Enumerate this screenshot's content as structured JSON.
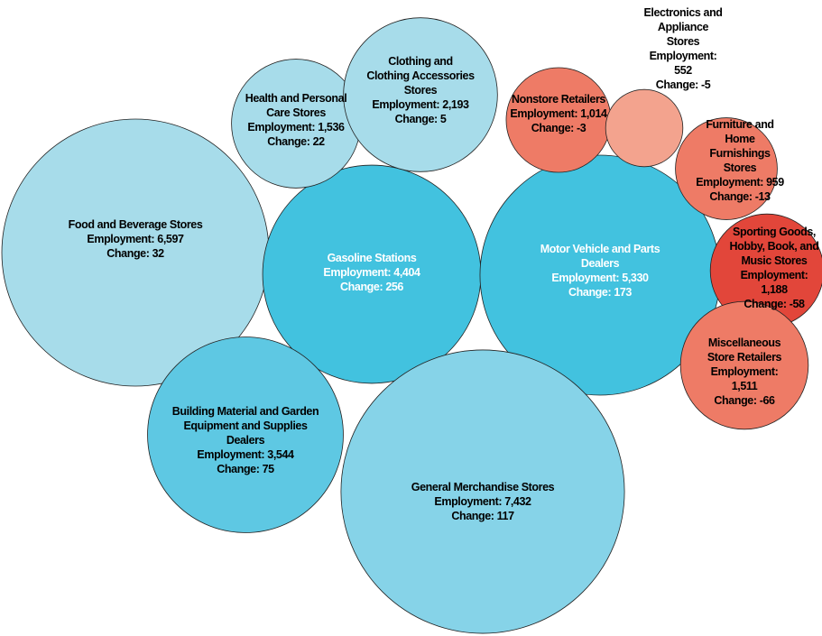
{
  "chart_data": {
    "type": "packed-bubble",
    "categories": [
      "Food and Beverage Stores",
      "Gasoline Stations",
      "Motor Vehicle and Parts Dealers",
      "Building Material and Garden Equipment and Supplies Dealers",
      "General Merchandise Stores",
      "Health and Personal Care Stores",
      "Clothing and Clothing Accessories Stores",
      "Nonstore Retailers",
      "Electronics and Appliance Stores",
      "Furniture and Home Furnishings Stores",
      "Sporting Goods, Hobby, Book, and Music Stores",
      "Miscellaneous Store Retailers"
    ],
    "employment_label": "Employment:",
    "change_label": "Change:",
    "employment": [
      6597,
      4404,
      5330,
      3544,
      7432,
      1536,
      2193,
      1014,
      552,
      959,
      1188,
      1511
    ],
    "value_labels": [
      "6,597",
      "4,404",
      "5,330",
      "3,544",
      "7,432",
      "1,536",
      "2,193",
      "1,014",
      "552",
      "959",
      "1,188",
      "1,511"
    ],
    "change": [
      32,
      256,
      173,
      75,
      117,
      22,
      5,
      -3,
      -5,
      -13,
      -58,
      -66
    ],
    "colors": [
      "#a7dcea",
      "#42c2df",
      "#42c2df",
      "#5ec8e3",
      "#86d3e8",
      "#a7dcea",
      "#a7dcea",
      "#ee7b66",
      "#f3a38e",
      "#ee7b66",
      "#e2463a",
      "#ee7b66"
    ],
    "label_colors": [
      "#000000",
      "#ffffff",
      "#ffffff",
      "#000000",
      "#000000",
      "#000000",
      "#000000",
      "#000000",
      "#000000",
      "#000000",
      "#000000",
      "#000000"
    ]
  }
}
